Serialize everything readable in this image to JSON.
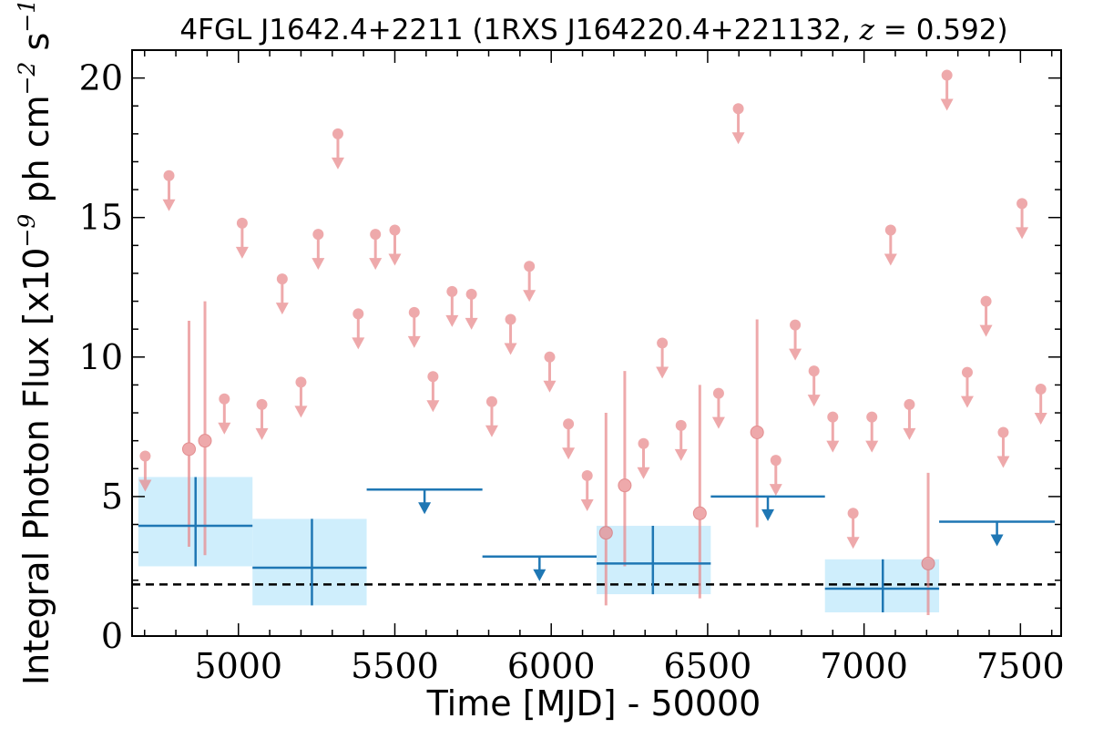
{
  "chart_data": {
    "type": "scatter",
    "title": "4FGL J1642.4+2211 (1RXS J164220.4+221132, z = 0.592)",
    "title_parts": {
      "prefix": "4FGL J1642.4+2211 (1RXS J164220.4+221132, ",
      "z_symbol": "z",
      "z_eq": " = ",
      "z_value": "0.592",
      "suffix": ")"
    },
    "xlabel": "Time [MJD] - 50000",
    "ylabel": "Integral Photon Flux [x10^-9 ph cm^-2 s^-1]",
    "ylabel_parts": {
      "a": "Integral Photon Flux [x10",
      "e1": "−9",
      "b": " ph cm",
      "e2": "−2",
      "c": " s",
      "e3": "−1",
      "d": "]"
    },
    "xlim": [
      4660,
      7630
    ],
    "ylim": [
      0,
      21
    ],
    "x_ticks": [
      5000,
      5500,
      6000,
      6500,
      7000,
      7500
    ],
    "y_ticks": [
      0,
      5,
      10,
      15,
      20
    ],
    "x_tick_labels": [
      "5000",
      "5500",
      "6000",
      "6500",
      "7000",
      "7500"
    ],
    "y_tick_labels": [
      "0",
      "5",
      "10",
      "15",
      "20"
    ],
    "grid": false,
    "legend": "none",
    "colors": {
      "short_bins": "#e8898c",
      "long_bins": "#1f77b4",
      "long_bins_fill": "#cfeefc",
      "baseline": "#000000"
    },
    "baseline_flux": 1.85,
    "series": [
      {
        "bin": "short",
        "upper_limits": [
          {
            "x": 4702,
            "y": 6.45
          },
          {
            "x": 4778,
            "y": 16.5
          },
          {
            "x": 4955,
            "y": 8.5
          },
          {
            "x": 5012,
            "y": 14.8
          },
          {
            "x": 5075,
            "y": 8.3
          },
          {
            "x": 5140,
            "y": 12.8
          },
          {
            "x": 5200,
            "y": 9.1
          },
          {
            "x": 5255,
            "y": 14.4
          },
          {
            "x": 5318,
            "y": 18.0
          },
          {
            "x": 5383,
            "y": 11.55
          },
          {
            "x": 5438,
            "y": 14.4
          },
          {
            "x": 5500,
            "y": 14.55
          },
          {
            "x": 5562,
            "y": 11.6
          },
          {
            "x": 5622,
            "y": 9.3
          },
          {
            "x": 5683,
            "y": 12.35
          },
          {
            "x": 5745,
            "y": 12.25
          },
          {
            "x": 5810,
            "y": 8.4
          },
          {
            "x": 5870,
            "y": 11.35
          },
          {
            "x": 5930,
            "y": 13.25
          },
          {
            "x": 5995,
            "y": 10.0
          },
          {
            "x": 6055,
            "y": 7.6
          },
          {
            "x": 6115,
            "y": 5.75
          },
          {
            "x": 6295,
            "y": 6.9
          },
          {
            "x": 6355,
            "y": 10.5
          },
          {
            "x": 6415,
            "y": 7.55
          },
          {
            "x": 6535,
            "y": 8.7
          },
          {
            "x": 6598,
            "y": 18.9
          },
          {
            "x": 6718,
            "y": 6.3
          },
          {
            "x": 6780,
            "y": 11.15
          },
          {
            "x": 6840,
            "y": 9.5
          },
          {
            "x": 6900,
            "y": 7.85
          },
          {
            "x": 6965,
            "y": 4.4
          },
          {
            "x": 7025,
            "y": 7.85
          },
          {
            "x": 7085,
            "y": 14.55
          },
          {
            "x": 7145,
            "y": 8.3
          },
          {
            "x": 7265,
            "y": 20.1
          },
          {
            "x": 7330,
            "y": 9.45
          },
          {
            "x": 7390,
            "y": 12.0
          },
          {
            "x": 7445,
            "y": 7.3
          },
          {
            "x": 7505,
            "y": 15.5
          },
          {
            "x": 7565,
            "y": 8.85
          }
        ],
        "detections": [
          {
            "x": 4842,
            "y": 6.7,
            "ylo": 3.2,
            "yhi": 11.3
          },
          {
            "x": 4893,
            "y": 7.0,
            "ylo": 2.9,
            "yhi": 12.0
          },
          {
            "x": 6175,
            "y": 3.7,
            "ylo": 1.1,
            "yhi": 8.0
          },
          {
            "x": 6235,
            "y": 5.4,
            "ylo": 2.5,
            "yhi": 9.5
          },
          {
            "x": 6475,
            "y": 4.4,
            "ylo": 1.35,
            "yhi": 9.0
          },
          {
            "x": 6658,
            "y": 7.3,
            "ylo": 3.9,
            "yhi": 11.35
          },
          {
            "x": 7205,
            "y": 2.6,
            "ylo": 0.75,
            "yhi": 5.85
          }
        ]
      },
      {
        "bin": "long",
        "detections": [
          {
            "x": 4863,
            "xlo": 4680,
            "xhi": 5045,
            "y": 3.95,
            "ylo": 2.5,
            "yhi": 5.7
          },
          {
            "x": 5235,
            "xlo": 5045,
            "xhi": 5410,
            "y": 2.45,
            "ylo": 1.1,
            "yhi": 4.2
          },
          {
            "x": 6325,
            "xlo": 6145,
            "xhi": 6510,
            "y": 2.6,
            "ylo": 1.5,
            "yhi": 3.95
          },
          {
            "x": 7060,
            "xlo": 6875,
            "xhi": 7240,
            "y": 1.7,
            "ylo": 0.85,
            "yhi": 2.75
          }
        ],
        "upper_limits": [
          {
            "xlo": 5410,
            "xhi": 5780,
            "y": 5.25
          },
          {
            "xlo": 5780,
            "xhi": 6145,
            "y": 2.85
          },
          {
            "xlo": 6510,
            "xhi": 6875,
            "y": 5.0
          },
          {
            "xlo": 7240,
            "xhi": 7610,
            "y": 4.1
          }
        ]
      }
    ]
  }
}
